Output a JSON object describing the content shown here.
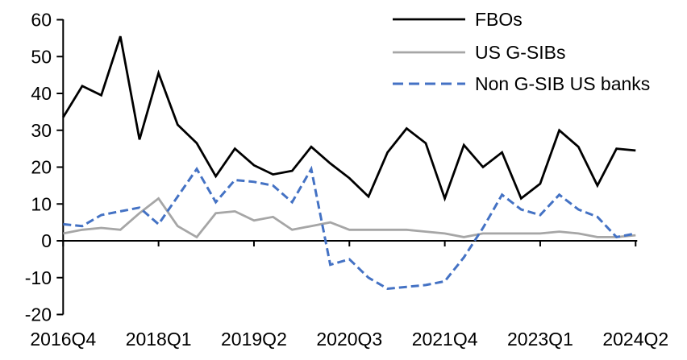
{
  "chart_data": {
    "type": "line",
    "title": "",
    "categories": [
      "2016Q4",
      "2017Q1",
      "2017Q2",
      "2017Q3",
      "2017Q4",
      "2018Q1",
      "2018Q2",
      "2018Q3",
      "2018Q4",
      "2019Q1",
      "2019Q2",
      "2019Q3",
      "2019Q4",
      "2020Q1",
      "2020Q2",
      "2020Q3",
      "2020Q4",
      "2021Q1",
      "2021Q2",
      "2021Q3",
      "2021Q4",
      "2022Q1",
      "2022Q2",
      "2022Q3",
      "2022Q4",
      "2023Q1",
      "2023Q2",
      "2023Q3",
      "2023Q4",
      "2024Q1",
      "2024Q2"
    ],
    "x_tick_labels": [
      "2016Q4",
      "2018Q1",
      "2019Q2",
      "2020Q3",
      "2021Q4",
      "2023Q1",
      "2024Q2"
    ],
    "x_tick_step": 5,
    "y_ticks": [
      60,
      50,
      40,
      30,
      20,
      10,
      0,
      -10,
      -20
    ],
    "ylim": [
      -20,
      60
    ],
    "grid": false,
    "legend_position": "top-right",
    "axis_color": "#000000",
    "series": [
      {
        "name": "FBOs",
        "color": "#000000",
        "style": "solid",
        "values": [
          33.5,
          42,
          39.5,
          55.5,
          27.5,
          45.5,
          31.5,
          26.5,
          17.5,
          25,
          20.5,
          18,
          19,
          25.5,
          21,
          17,
          12,
          24,
          30.5,
          26.5,
          11.5,
          26,
          20,
          24,
          11.5,
          15.5,
          30,
          25.5,
          15,
          25,
          24.5
        ]
      },
      {
        "name": "US G-SIBs",
        "color": "#A6A6A6",
        "style": "solid",
        "values": [
          2,
          3,
          3.5,
          3,
          7.5,
          11.5,
          4,
          1,
          7.5,
          8,
          5.5,
          6.5,
          3,
          4,
          5,
          3,
          3,
          3,
          3,
          2.5,
          2,
          1,
          2,
          2,
          2,
          2,
          2.5,
          2,
          1,
          1,
          1.5
        ]
      },
      {
        "name": "Non G-SIB US banks",
        "color": "#4472C4",
        "style": "dashed",
        "values": [
          4.5,
          4,
          7,
          8,
          9,
          4.5,
          12,
          19.5,
          10.5,
          16.5,
          16,
          15,
          10.5,
          19.5,
          -6.5,
          -5,
          -10,
          -13,
          -12.5,
          -12,
          -11,
          -4.5,
          3.5,
          12.5,
          8.5,
          7,
          12.5,
          8.5,
          6.5,
          1,
          2
        ]
      }
    ]
  }
}
